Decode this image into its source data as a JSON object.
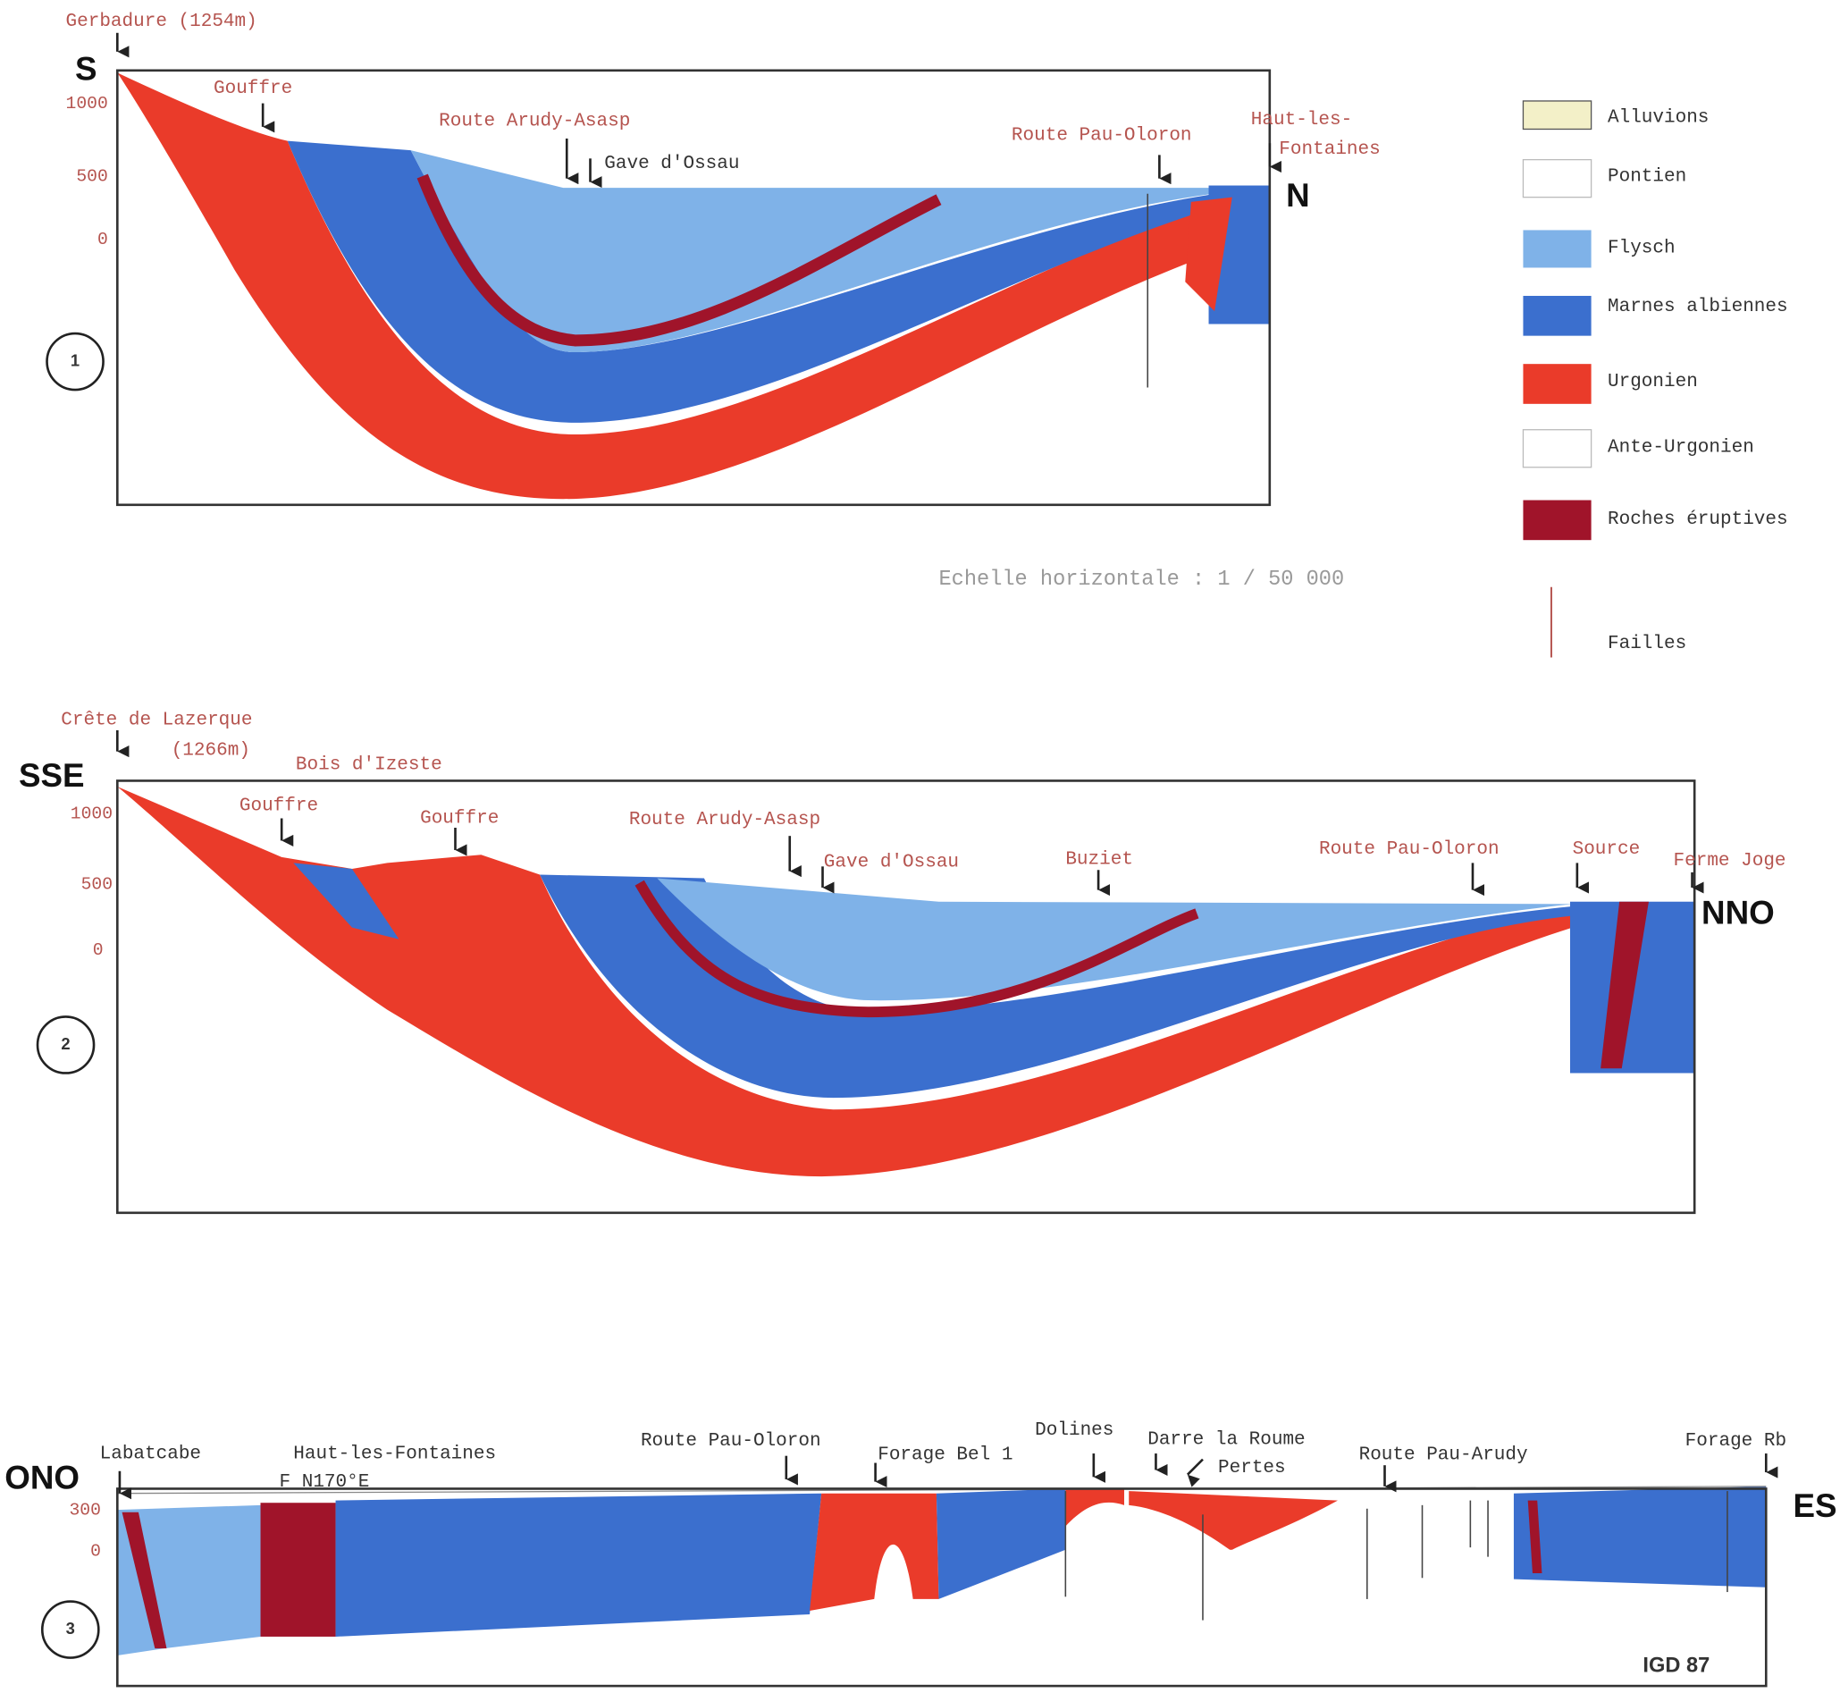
{
  "legend": {
    "items": [
      "Alluvions",
      "Pontien",
      "Flysch",
      "Marnes albiennes",
      "Urgonien",
      "Ante-Urgonien",
      "Roches éruptives",
      "Failles"
    ]
  },
  "scale": "Echelle horizontale : 1 / 50 000",
  "sections": [
    {
      "number": "1",
      "start": "S",
      "end": "N",
      "elevations": [
        "1000",
        "500",
        "0"
      ],
      "labels": [
        "Gerbadure (1254m)",
        "Gouffre",
        "Route Arudy-Asasp",
        "Gave d'Ossau",
        "Route Pau-Oloron",
        "Haut-les-",
        "Fontaines"
      ]
    },
    {
      "number": "2",
      "start": "SSE",
      "end": "NNO",
      "elevations": [
        "1000",
        "500",
        "0"
      ],
      "labels": [
        "Crête de Lazerque",
        "(1266m)",
        "Bois d'Izeste",
        "Gouffre",
        "Gouffre",
        "Route Arudy-Asasp",
        "Gave d'Ossau",
        "Buziet",
        "Route Pau-Oloron",
        "Source",
        "Ferme Joge"
      ]
    },
    {
      "number": "3",
      "start": "ONO",
      "end": "ES",
      "elevations": [
        "300",
        "0"
      ],
      "labels": [
        "Labatcabe",
        "Haut-les-Fontaines",
        "F N170°E",
        "Route Pau-Oloron",
        "Forage Bel 1",
        "Dolines",
        "Darre la Roume",
        "Pertes",
        "Route Pau-Arudy",
        "Forage Rb"
      ]
    }
  ],
  "credit": "IGD 87"
}
